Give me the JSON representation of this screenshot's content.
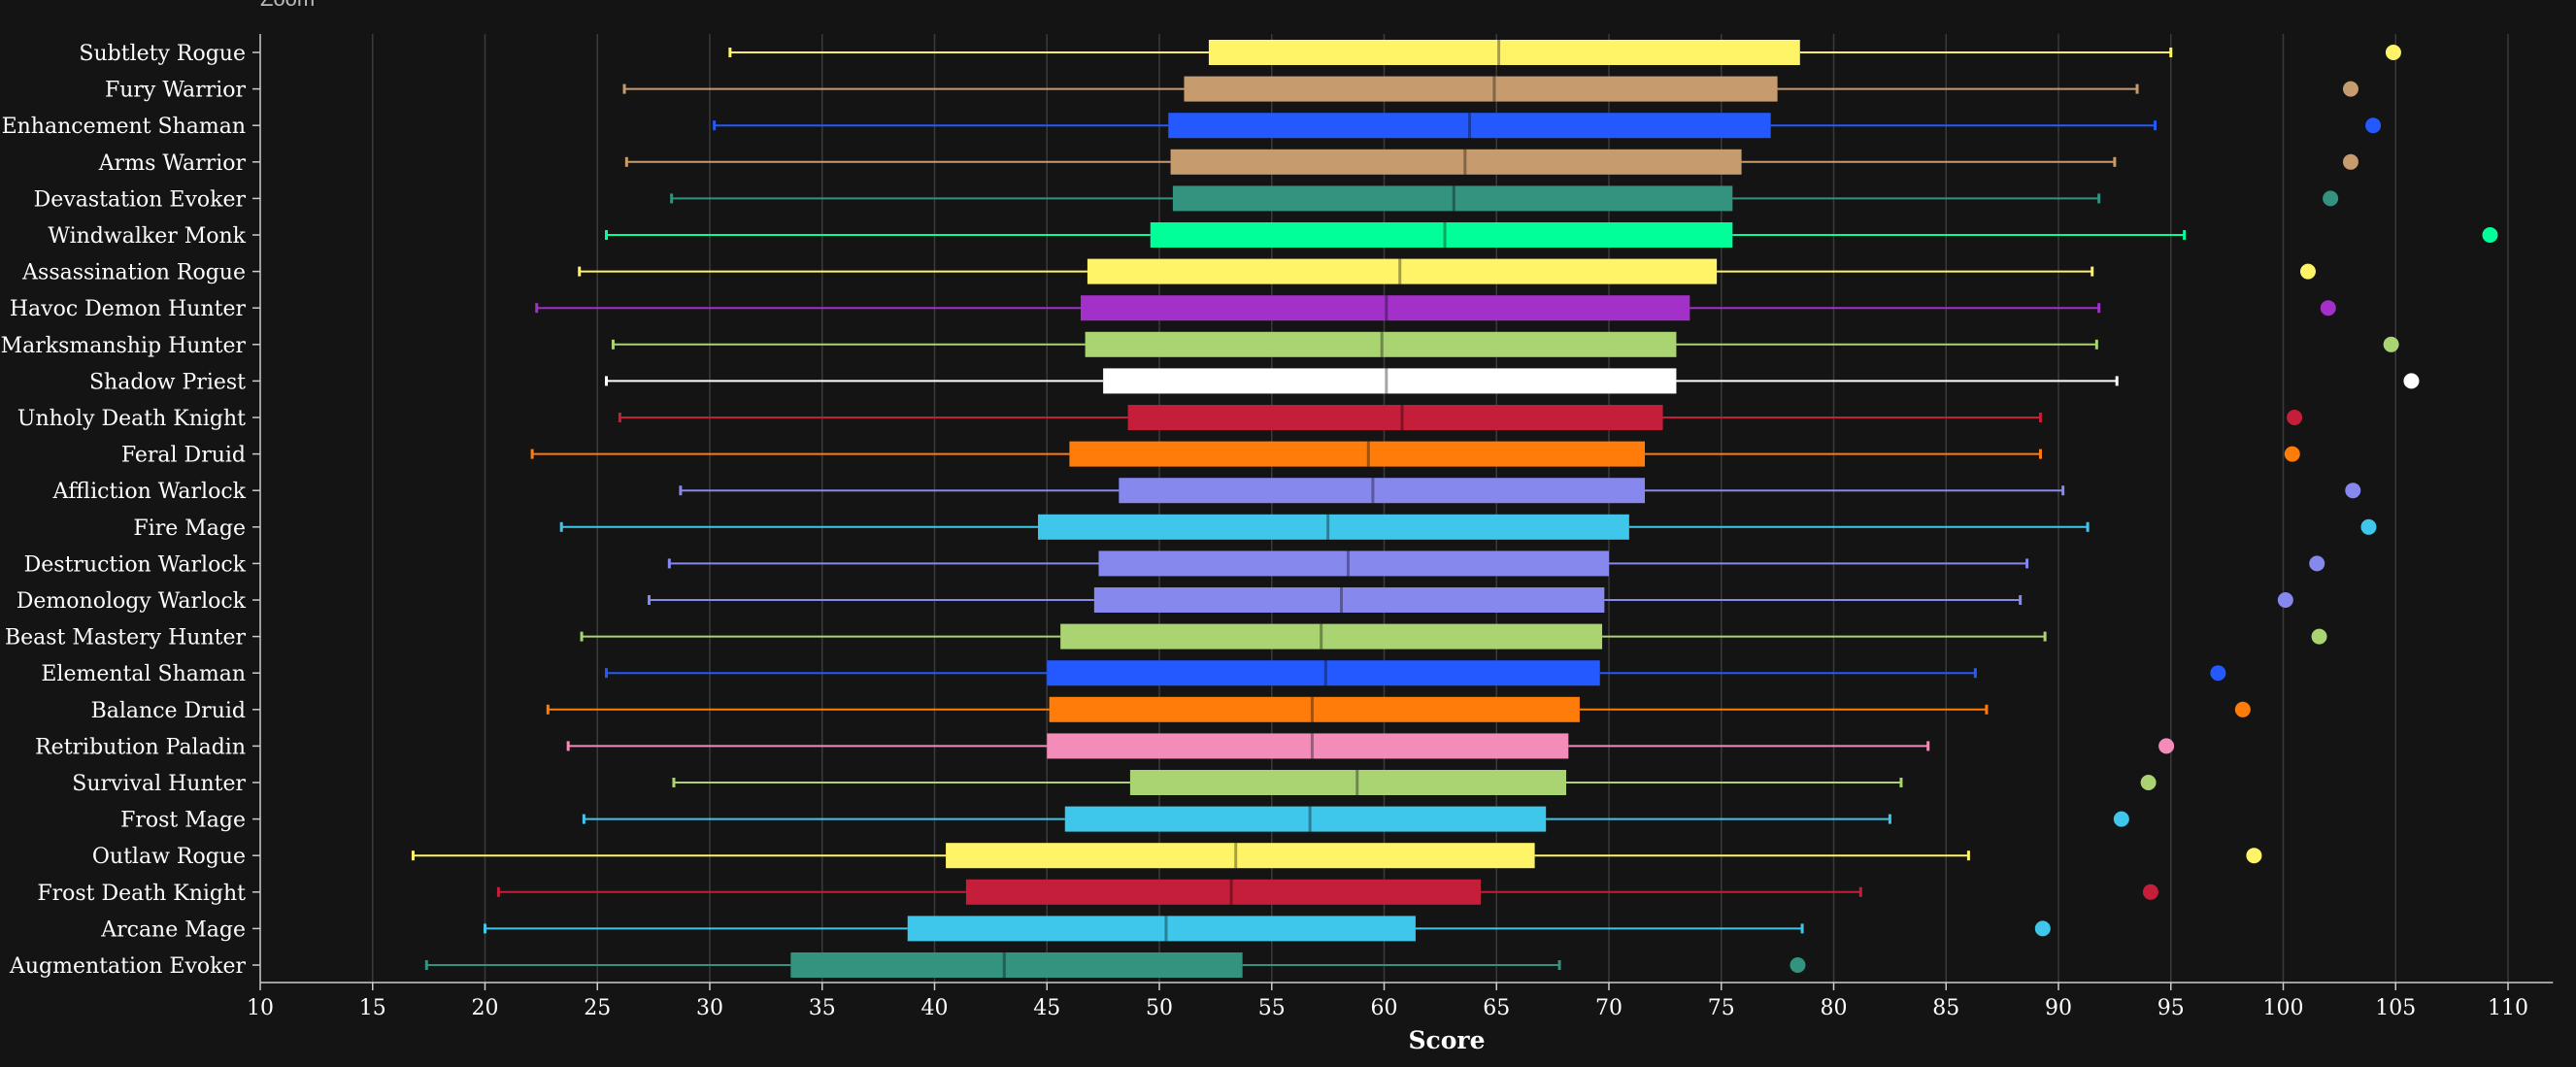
{
  "zoom_label": "Zoom",
  "chart_data": {
    "type": "box",
    "orientation": "horizontal",
    "xlabel": "Score",
    "xlim": [
      10,
      112
    ],
    "xticks": [
      10,
      15,
      20,
      25,
      30,
      35,
      40,
      45,
      50,
      55,
      60,
      65,
      70,
      75,
      80,
      85,
      90,
      95,
      100,
      105,
      110
    ],
    "grid": true,
    "series": [
      {
        "name": "Subtlety Rogue",
        "color": "#FFF468",
        "min": 30.9,
        "q1": 52.2,
        "median": 65.1,
        "q3": 78.5,
        "max": 95.0,
        "outlier": 104.9
      },
      {
        "name": "Fury Warrior",
        "color": "#C69B6D",
        "min": 26.2,
        "q1": 51.1,
        "median": 64.9,
        "q3": 77.5,
        "max": 93.5,
        "outlier": 103.0
      },
      {
        "name": "Enhancement Shaman",
        "color": "#2359FF",
        "min": 30.2,
        "q1": 50.4,
        "median": 63.8,
        "q3": 77.2,
        "max": 94.3,
        "outlier": 104.0
      },
      {
        "name": "Arms Warrior",
        "color": "#C69B6D",
        "min": 26.3,
        "q1": 50.5,
        "median": 63.6,
        "q3": 75.9,
        "max": 92.5,
        "outlier": 103.0
      },
      {
        "name": "Devastation Evoker",
        "color": "#33937F",
        "min": 28.3,
        "q1": 50.6,
        "median": 63.1,
        "q3": 75.5,
        "max": 91.8,
        "outlier": 102.1
      },
      {
        "name": "Windwalker Monk",
        "color": "#00FF98",
        "min": 25.4,
        "q1": 49.6,
        "median": 62.7,
        "q3": 75.5,
        "max": 95.6,
        "outlier": 109.2
      },
      {
        "name": "Assassination Rogue",
        "color": "#FFF468",
        "min": 24.2,
        "q1": 46.8,
        "median": 60.7,
        "q3": 74.8,
        "max": 91.5,
        "outlier": 101.1
      },
      {
        "name": "Havoc Demon Hunter",
        "color": "#A330C9",
        "min": 22.3,
        "q1": 46.5,
        "median": 60.1,
        "q3": 73.6,
        "max": 91.8,
        "outlier": 102.0
      },
      {
        "name": "Marksmanship Hunter",
        "color": "#AAD372",
        "min": 25.7,
        "q1": 46.7,
        "median": 59.9,
        "q3": 73.0,
        "max": 91.7,
        "outlier": 104.8
      },
      {
        "name": "Shadow Priest",
        "color": "#FFFFFF",
        "min": 25.4,
        "q1": 47.5,
        "median": 60.1,
        "q3": 73.0,
        "max": 92.6,
        "outlier": 105.7
      },
      {
        "name": "Unholy Death Knight",
        "color": "#C41E3A",
        "min": 26.0,
        "q1": 48.6,
        "median": 60.8,
        "q3": 72.4,
        "max": 89.2,
        "outlier": 100.5
      },
      {
        "name": "Feral Druid",
        "color": "#FF7C0A",
        "min": 22.1,
        "q1": 46.0,
        "median": 59.3,
        "q3": 71.6,
        "max": 89.2,
        "outlier": 100.4
      },
      {
        "name": "Affliction Warlock",
        "color": "#8788EE",
        "min": 28.7,
        "q1": 48.2,
        "median": 59.5,
        "q3": 71.6,
        "max": 90.2,
        "outlier": 103.1
      },
      {
        "name": "Fire Mage",
        "color": "#3FC7EB",
        "min": 23.4,
        "q1": 44.6,
        "median": 57.5,
        "q3": 70.9,
        "max": 91.3,
        "outlier": 103.8
      },
      {
        "name": "Destruction Warlock",
        "color": "#8788EE",
        "min": 28.2,
        "q1": 47.3,
        "median": 58.4,
        "q3": 70.0,
        "max": 88.6,
        "outlier": 101.5
      },
      {
        "name": "Demonology Warlock",
        "color": "#8788EE",
        "min": 27.3,
        "q1": 47.1,
        "median": 58.1,
        "q3": 69.8,
        "max": 88.3,
        "outlier": 100.1
      },
      {
        "name": "Beast Mastery Hunter",
        "color": "#AAD372",
        "min": 24.3,
        "q1": 45.6,
        "median": 57.2,
        "q3": 69.7,
        "max": 89.4,
        "outlier": 101.6
      },
      {
        "name": "Elemental Shaman",
        "color": "#2359FF",
        "min": 25.4,
        "q1": 45.0,
        "median": 57.4,
        "q3": 69.6,
        "max": 86.3,
        "outlier": 97.1
      },
      {
        "name": "Balance Druid",
        "color": "#FF7C0A",
        "min": 22.8,
        "q1": 45.1,
        "median": 56.8,
        "q3": 68.7,
        "max": 86.8,
        "outlier": 98.2
      },
      {
        "name": "Retribution Paladin",
        "color": "#F48CBA",
        "min": 23.7,
        "q1": 45.0,
        "median": 56.8,
        "q3": 68.2,
        "max": 84.2,
        "outlier": 94.8
      },
      {
        "name": "Survival Hunter",
        "color": "#AAD372",
        "min": 28.4,
        "q1": 48.7,
        "median": 58.8,
        "q3": 68.1,
        "max": 83.0,
        "outlier": 94.0
      },
      {
        "name": "Frost Mage",
        "color": "#3FC7EB",
        "min": 24.4,
        "q1": 45.8,
        "median": 56.7,
        "q3": 67.2,
        "max": 82.5,
        "outlier": 92.8
      },
      {
        "name": "Outlaw Rogue",
        "color": "#FFF468",
        "min": 16.8,
        "q1": 40.5,
        "median": 53.4,
        "q3": 66.7,
        "max": 86.0,
        "outlier": 98.7
      },
      {
        "name": "Frost Death Knight",
        "color": "#C41E3A",
        "min": 20.6,
        "q1": 41.4,
        "median": 53.2,
        "q3": 64.3,
        "max": 81.2,
        "outlier": 94.1
      },
      {
        "name": "Arcane Mage",
        "color": "#3FC7EB",
        "min": 20.0,
        "q1": 38.8,
        "median": 50.3,
        "q3": 61.4,
        "max": 78.6,
        "outlier": 89.3
      },
      {
        "name": "Augmentation Evoker",
        "color": "#33937F",
        "min": 17.4,
        "q1": 33.6,
        "median": 43.1,
        "q3": 53.7,
        "max": 67.8,
        "outlier": 78.4
      }
    ]
  }
}
